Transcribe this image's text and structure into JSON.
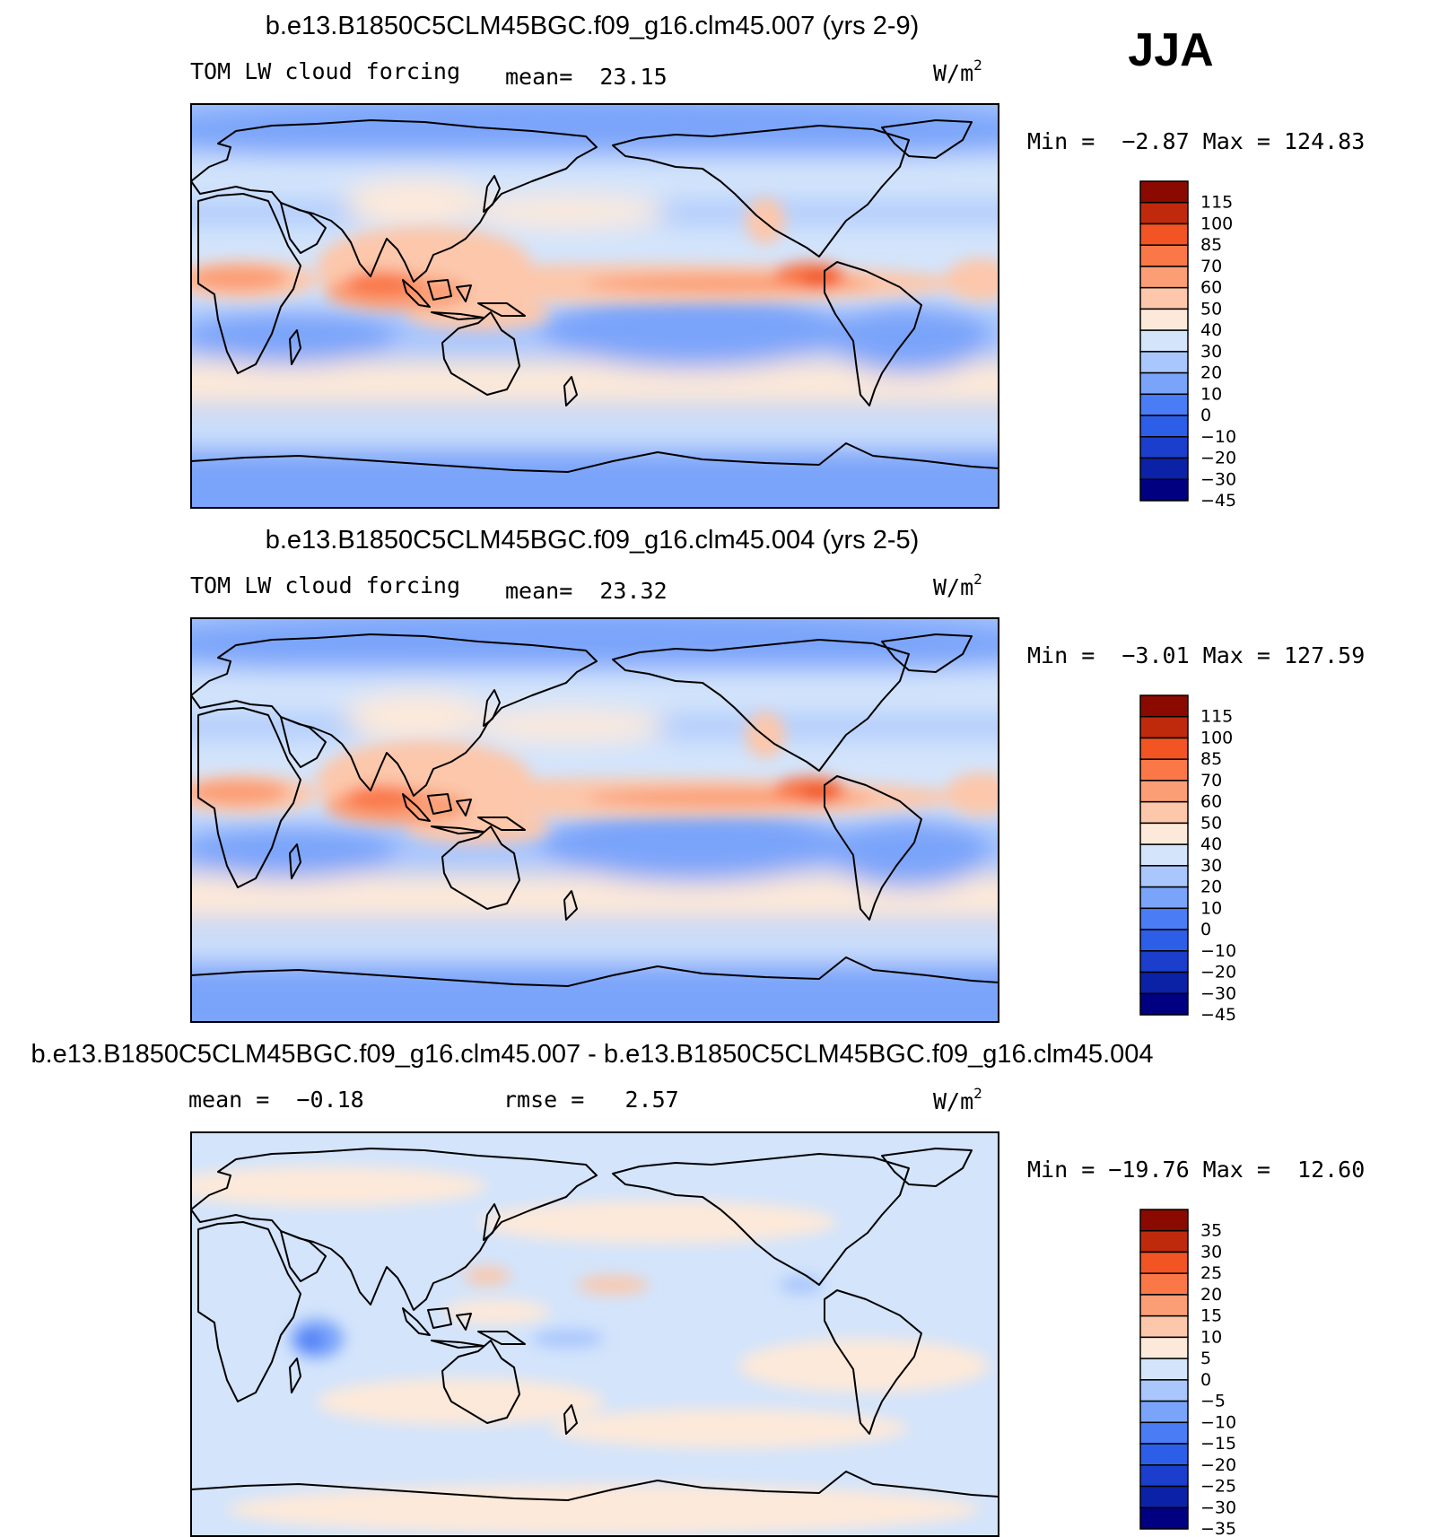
{
  "season": "JJA",
  "palette_main": [
    "#000080",
    "#0b22a6",
    "#1b3fcc",
    "#2d5ee8",
    "#4a7cf5",
    "#7aa4fa",
    "#a9c6fd",
    "#d3e4fb",
    "#fde9d9",
    "#fcc7ab",
    "#fb9e76",
    "#fa7848",
    "#f25423",
    "#c02a0c",
    "#8b0a00"
  ],
  "palette_diff": [
    "#000080",
    "#0b22a6",
    "#1b3fcc",
    "#2d5ee8",
    "#4a7cf5",
    "#7aa4fa",
    "#a9c6fd",
    "#d3e4fb",
    "#fde9d9",
    "#fcc7ab",
    "#fb9e76",
    "#fa7848",
    "#f25423",
    "#c02a0c",
    "#8b0a00"
  ],
  "panels": [
    {
      "id": "panel-007",
      "type": "field",
      "title": "b.e13.B1850C5CLM45BGC.f09_g16.clm45.007 (yrs 2-9)",
      "variable": "TOM LW cloud forcing",
      "mean_text": "mean=  23.15",
      "units_base": "W/m",
      "units_exp": "2",
      "minmax_text": "Min =  −2.87 Max = 124.83",
      "levels": [
        "115",
        "100",
        "85",
        "70",
        "60",
        "50",
        "40",
        "30",
        "20",
        "10",
        "0",
        "−10",
        "−20",
        "−30",
        "−45"
      ]
    },
    {
      "id": "panel-004",
      "type": "field",
      "title": "b.e13.B1850C5CLM45BGC.f09_g16.clm45.004 (yrs 2-5)",
      "variable": "TOM LW cloud forcing",
      "mean_text": "mean=  23.32",
      "units_base": "W/m",
      "units_exp": "2",
      "minmax_text": "Min =  −3.01 Max = 127.59",
      "levels": [
        "115",
        "100",
        "85",
        "70",
        "60",
        "50",
        "40",
        "30",
        "20",
        "10",
        "0",
        "−10",
        "−20",
        "−30",
        "−45"
      ]
    },
    {
      "id": "panel-diff",
      "type": "diff",
      "title": "b.e13.B1850C5CLM45BGC.f09_g16.clm45.007 - b.e13.B1850C5CLM45BGC.f09_g16.clm45.004",
      "variable": "mean =  −0.18",
      "mean_text": "rmse =   2.57",
      "units_base": "W/m",
      "units_exp": "2",
      "minmax_text": "Min = −19.76 Max =  12.60",
      "levels": [
        "35",
        "30",
        "25",
        "20",
        "15",
        "10",
        "5",
        "0",
        "−5",
        "−10",
        "−15",
        "−20",
        "−25",
        "−30",
        "−35"
      ]
    }
  ]
}
